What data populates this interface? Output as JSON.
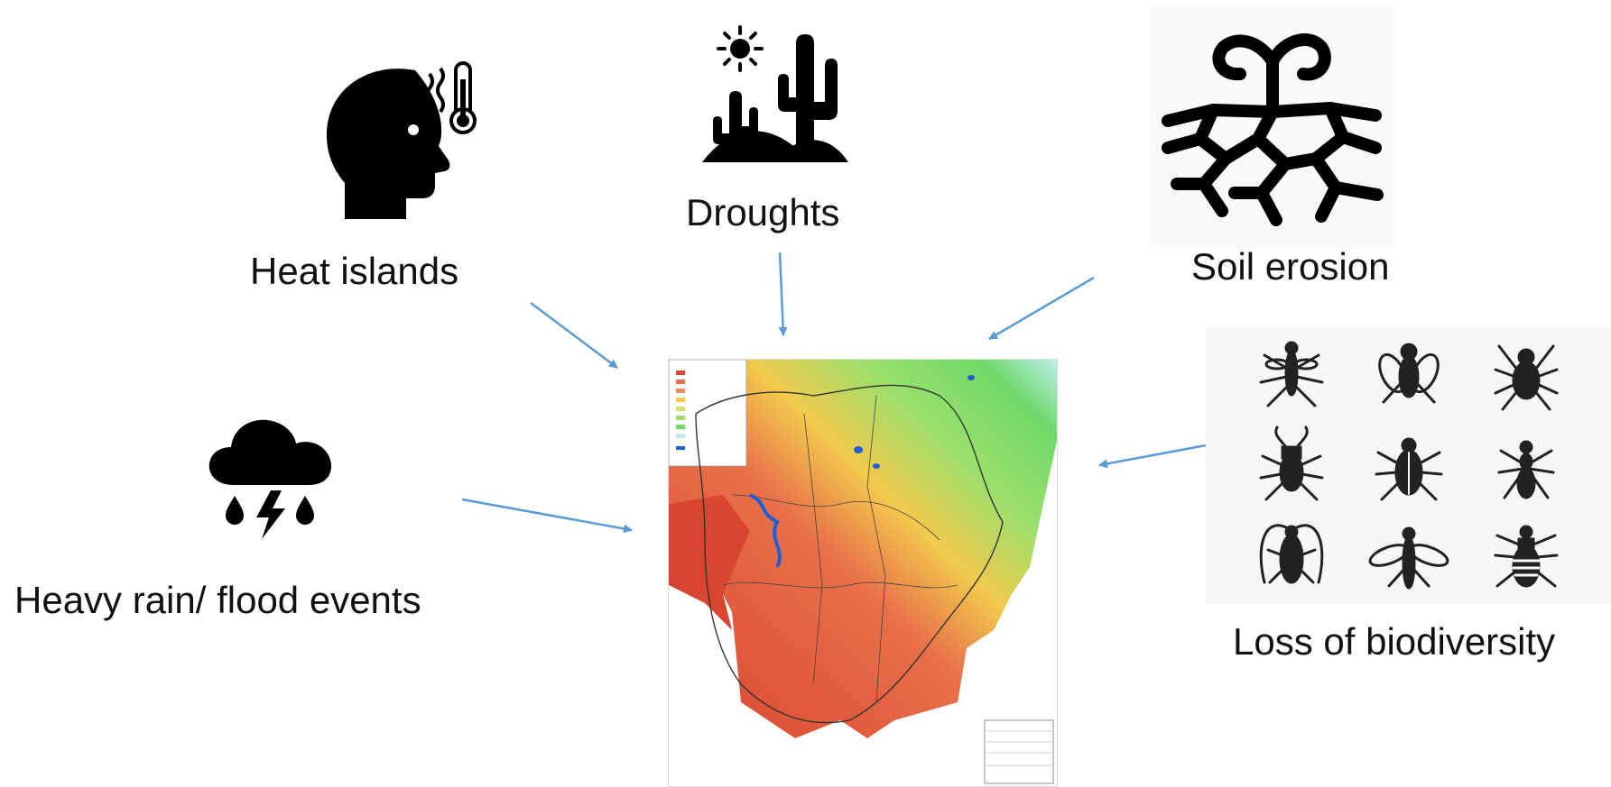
{
  "labels": {
    "heat_islands": "Heat islands",
    "droughts": "Droughts",
    "soil_erosion": "Soil erosion",
    "heavy_rain": "Heavy rain/ flood events",
    "biodiversity": "Loss of biodiversity"
  },
  "icons": {
    "heat": "head-with-thermometer-icon",
    "drought": "sun-and-cactus-icon",
    "soil": "sprout-roots-cracked-soil-icon",
    "rain": "storm-cloud-rain-lightning-icon",
    "insects": "insect-grid-icon",
    "map": "regional-climate-map-image"
  },
  "colors": {
    "arrow": "#5b9bd5",
    "icon": "#000000",
    "map_warm": "#e0553f",
    "map_mid": "#f2c94c",
    "map_cool": "#7fd86a",
    "map_cold": "#bdeeea",
    "water": "#1f5fd6"
  }
}
